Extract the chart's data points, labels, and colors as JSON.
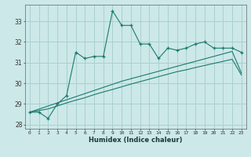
{
  "xlabel": "Humidex (Indice chaleur)",
  "background_color": "#cce8e8",
  "grid_color": "#aad0d0",
  "line_color": "#1a7a6e",
  "xlim": [
    -0.5,
    23.5
  ],
  "ylim": [
    27.8,
    33.8
  ],
  "yticks": [
    28,
    29,
    30,
    31,
    32,
    33
  ],
  "xticks": [
    0,
    1,
    2,
    3,
    4,
    5,
    6,
    7,
    8,
    9,
    10,
    11,
    12,
    13,
    14,
    15,
    16,
    17,
    18,
    19,
    20,
    21,
    22,
    23
  ],
  "main_series": [
    28.6,
    28.6,
    28.3,
    29.0,
    29.4,
    31.5,
    31.2,
    31.3,
    31.3,
    33.5,
    32.8,
    32.8,
    31.9,
    31.9,
    31.2,
    31.7,
    31.6,
    31.7,
    31.9,
    32.0,
    31.7,
    31.7,
    31.7,
    31.5
  ],
  "trend1": [
    28.6,
    28.75,
    28.9,
    29.05,
    29.2,
    29.35,
    29.5,
    29.65,
    29.8,
    29.95,
    30.1,
    30.22,
    30.34,
    30.46,
    30.58,
    30.7,
    30.82,
    30.94,
    31.06,
    31.18,
    31.3,
    31.42,
    31.54,
    30.5
  ],
  "trend2": [
    28.6,
    28.68,
    28.76,
    28.9,
    29.05,
    29.18,
    29.3,
    29.45,
    29.58,
    29.7,
    29.83,
    29.96,
    30.08,
    30.2,
    30.32,
    30.44,
    30.56,
    30.65,
    30.76,
    30.86,
    30.96,
    31.06,
    31.16,
    30.4
  ]
}
